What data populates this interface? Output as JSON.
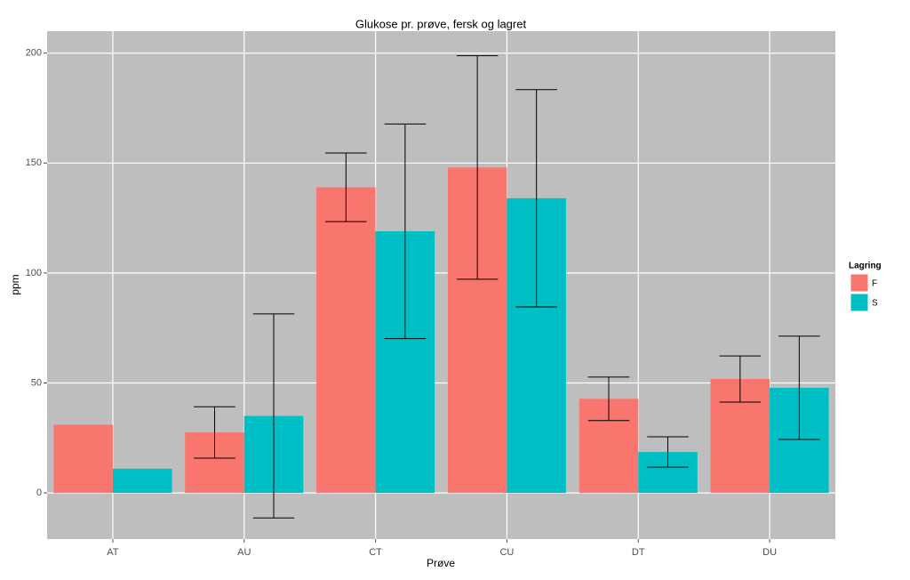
{
  "chart_data": {
    "type": "bar",
    "title": "Glukose pr. prøve, fersk og lagret",
    "x_label": "Prøve",
    "y_label": "ppm",
    "categories": [
      "AT",
      "AU",
      "CT",
      "CU",
      "DT",
      "DU"
    ],
    "series": [
      {
        "name": "F",
        "color": "#F8766D",
        "values": [
          31,
          27.5,
          139,
          148,
          42.8,
          51.8
        ],
        "errors": [
          null,
          11.7,
          15.6,
          50.8,
          9.9,
          10.5
        ]
      },
      {
        "name": "S",
        "color": "#00BFC4",
        "values": [
          11,
          35,
          119,
          134,
          18.6,
          47.8
        ],
        "errors": [
          null,
          46.4,
          48.8,
          49.4,
          6.9,
          23.5
        ]
      }
    ],
    "legend_title": "Lagring",
    "legend_position": "right",
    "ylim": [
      -21,
      210
    ],
    "yticks": [
      0,
      50,
      100,
      150,
      200
    ],
    "grid": true
  }
}
